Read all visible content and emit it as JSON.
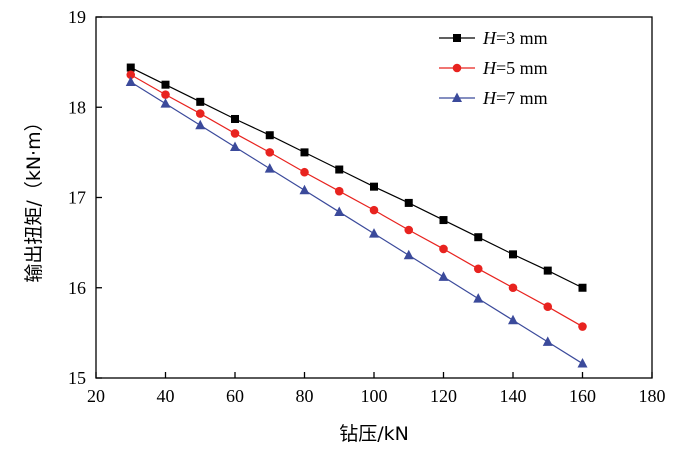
{
  "chart_data": {
    "type": "line",
    "title": "",
    "xlabel": "钻压/kN",
    "ylabel": "输出扭矩/（kN·m）",
    "xlim": [
      20,
      180
    ],
    "ylim": [
      15,
      19
    ],
    "xticks": [
      20,
      40,
      60,
      80,
      100,
      120,
      140,
      160,
      180
    ],
    "yticks": [
      15,
      16,
      17,
      18,
      19
    ],
    "legend_position": "top-right",
    "x": [
      30,
      40,
      50,
      60,
      70,
      80,
      90,
      100,
      110,
      120,
      130,
      140,
      150,
      160
    ],
    "series": [
      {
        "name": "H=3 mm",
        "legend_prefix": "H",
        "legend_suffix": "=3 mm",
        "color": "#000000",
        "marker": "square",
        "values": [
          18.44,
          18.25,
          18.06,
          17.87,
          17.69,
          17.5,
          17.31,
          17.12,
          16.94,
          16.75,
          16.56,
          16.37,
          16.19,
          16.0
        ]
      },
      {
        "name": "H=5 mm",
        "legend_prefix": "H",
        "legend_suffix": "=5 mm",
        "color": "#e8231f",
        "marker": "circle",
        "values": [
          18.36,
          18.14,
          17.93,
          17.71,
          17.5,
          17.28,
          17.07,
          16.86,
          16.64,
          16.43,
          16.21,
          16.0,
          15.79,
          15.57
        ]
      },
      {
        "name": "H=7 mm",
        "legend_prefix": "H",
        "legend_suffix": "=7 mm",
        "color": "#3b4a9b",
        "marker": "triangle",
        "values": [
          18.28,
          18.04,
          17.8,
          17.56,
          17.32,
          17.08,
          16.84,
          16.6,
          16.36,
          16.12,
          15.88,
          15.64,
          15.4,
          15.16
        ]
      }
    ]
  }
}
